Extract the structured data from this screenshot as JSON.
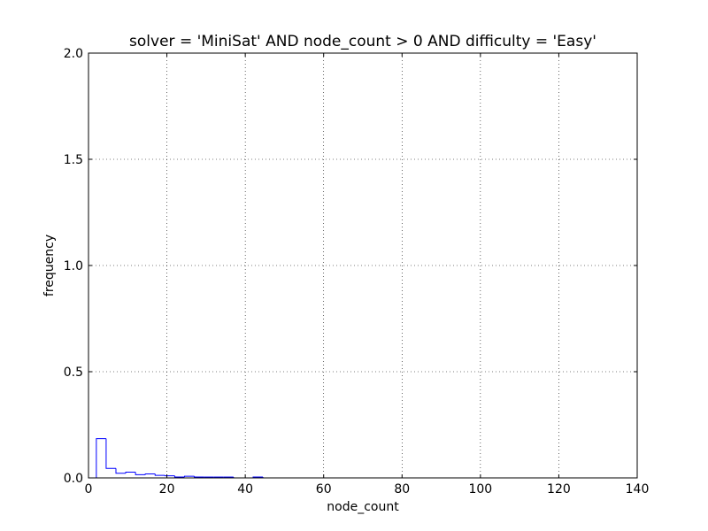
{
  "chart_data": {
    "type": "histogram",
    "title": "solver = 'MiniSat' AND node_count > 0 AND difficulty = 'Easy'",
    "xlabel": "node_count",
    "ylabel": "frequency",
    "xlim": [
      0,
      140
    ],
    "ylim": [
      0,
      2.0
    ],
    "xticks": [
      0,
      20,
      40,
      60,
      80,
      100,
      120,
      140
    ],
    "xtick_labels": [
      "0",
      "20",
      "40",
      "60",
      "80",
      "100",
      "120",
      "140"
    ],
    "yticks": [
      0,
      0.5,
      1.0,
      1.5,
      2.0
    ],
    "ytick_labels": [
      "0.0",
      "0.5",
      "1.0",
      "1.5",
      "2.0"
    ],
    "grid": true,
    "series_color": "#0000ff",
    "bins": [
      {
        "x0": 2.0,
        "x1": 4.5,
        "y": 0.185
      },
      {
        "x0": 4.5,
        "x1": 7.0,
        "y": 0.045
      },
      {
        "x0": 7.0,
        "x1": 9.5,
        "y": 0.022
      },
      {
        "x0": 9.5,
        "x1": 12.0,
        "y": 0.027
      },
      {
        "x0": 12.0,
        "x1": 14.5,
        "y": 0.015
      },
      {
        "x0": 14.5,
        "x1": 17.0,
        "y": 0.019
      },
      {
        "x0": 17.0,
        "x1": 19.5,
        "y": 0.012
      },
      {
        "x0": 19.5,
        "x1": 22.0,
        "y": 0.01
      },
      {
        "x0": 22.0,
        "x1": 24.5,
        "y": 0.004
      },
      {
        "x0": 24.5,
        "x1": 27.0,
        "y": 0.008
      },
      {
        "x0": 27.0,
        "x1": 29.5,
        "y": 0.004
      },
      {
        "x0": 29.5,
        "x1": 32.0,
        "y": 0.004
      },
      {
        "x0": 32.0,
        "x1": 34.5,
        "y": 0.004
      },
      {
        "x0": 34.5,
        "x1": 37.0,
        "y": 0.004
      },
      {
        "x0": 37.0,
        "x1": 39.5,
        "y": 0.0
      },
      {
        "x0": 39.5,
        "x1": 42.0,
        "y": 0.0
      },
      {
        "x0": 42.0,
        "x1": 44.5,
        "y": 0.004
      },
      {
        "x0": 44.5,
        "x1": 47.0,
        "y": 0.0
      }
    ]
  }
}
